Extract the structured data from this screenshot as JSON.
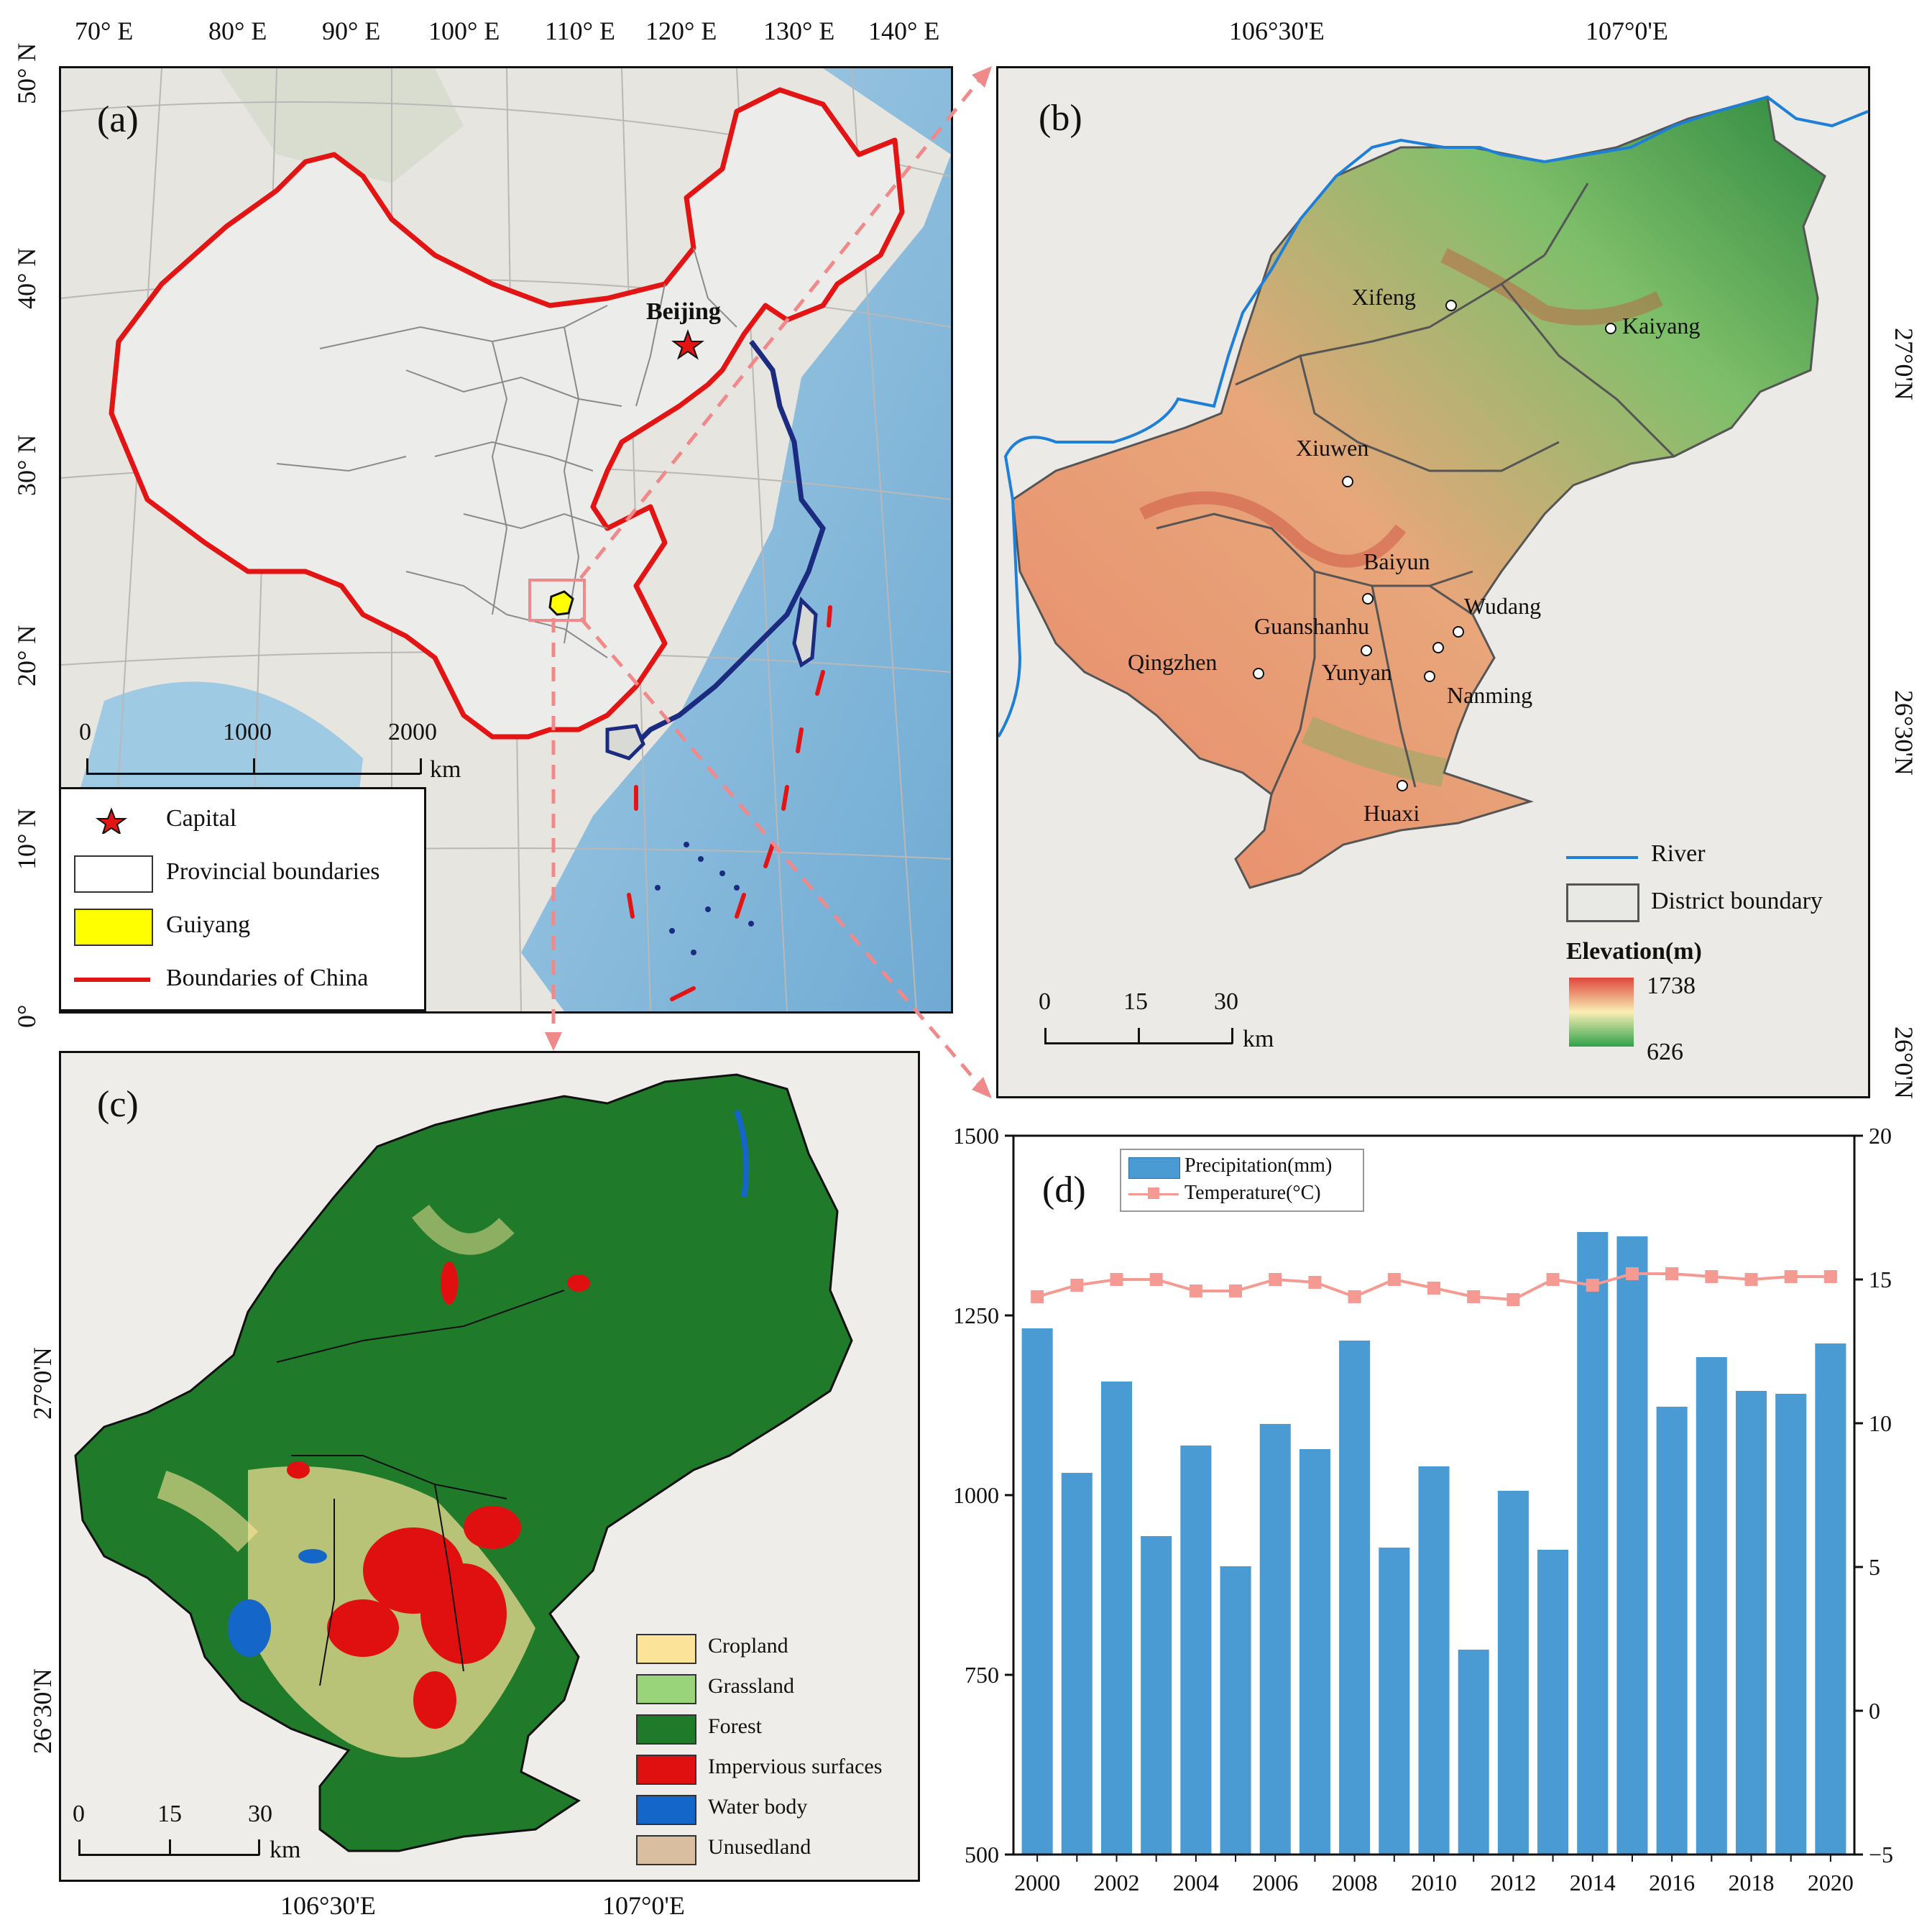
{
  "panel_a": {
    "tag": "(a)",
    "lon_ticks": [
      "70° E",
      "80° E",
      "90° E",
      "100° E",
      "110° E",
      "120° E",
      "130° E",
      "140° E"
    ],
    "lat_ticks": [
      "50° N",
      "40° N",
      "30° N",
      "20° N",
      "10° N",
      "0°"
    ],
    "capital_label": "Beijing",
    "scalebar": {
      "ticks": [
        "0",
        "1000",
        "2000"
      ],
      "unit": "km"
    },
    "legend": [
      {
        "label": "Capital",
        "icon": "red-star-icon"
      },
      {
        "label": "Provincial boundaries",
        "icon": "white-box"
      },
      {
        "label": "Guiyang",
        "icon": "yellow-box"
      },
      {
        "label": "Boundaries of China",
        "icon": "red-line"
      }
    ]
  },
  "panel_b": {
    "tag": "(b)",
    "lon_ticks": [
      "106°30'E",
      "107°0'E"
    ],
    "lat_ticks": [
      "27°0'N",
      "26°30'N",
      "26°0'N"
    ],
    "districts": [
      "Xifeng",
      "Kaiyang",
      "Xiuwen",
      "Baiyun",
      "Wudang",
      "Guanshanhu",
      "Qingzhen",
      "Yunyan",
      "Nanming",
      "Huaxi"
    ],
    "legend": {
      "river": "River",
      "district": "District boundary",
      "elev_title": "Elevation(m)",
      "elev_max": "1738",
      "elev_min": "626"
    },
    "scalebar": {
      "ticks": [
        "0",
        "15",
        "30"
      ],
      "unit": "km"
    }
  },
  "panel_c": {
    "tag": "(c)",
    "lon_ticks": [
      "106°30'E",
      "107°0'E"
    ],
    "lat_ticks": [
      "27°0'N",
      "26°30'N"
    ],
    "legend": [
      {
        "label": "Cropland",
        "color": "#fbe39a"
      },
      {
        "label": "Grassland",
        "color": "#9ad47a"
      },
      {
        "label": "Forest",
        "color": "#1f7a2a"
      },
      {
        "label": "Impervious surfaces",
        "color": "#e01010"
      },
      {
        "label": "Water body",
        "color": "#1466c8"
      },
      {
        "label": "Unusedland",
        "color": "#d9bfa0"
      }
    ],
    "scalebar": {
      "ticks": [
        "0",
        "15",
        "30"
      ],
      "unit": "km"
    }
  },
  "chart_data": {
    "type": "bar",
    "tag": "(d)",
    "x": [
      2000,
      2001,
      2002,
      2003,
      2004,
      2005,
      2006,
      2007,
      2008,
      2009,
      2010,
      2011,
      2012,
      2013,
      2014,
      2015,
      2016,
      2017,
      2018,
      2019,
      2020
    ],
    "x_tick_labels": [
      "2000",
      "2002",
      "2004",
      "2006",
      "2008",
      "2010",
      "2012",
      "2014",
      "2016",
      "2018",
      "2020"
    ],
    "series": [
      {
        "name": "Precipitation(mm)",
        "type": "bar",
        "axis": "left",
        "color": "#4a9bd4",
        "values": [
          1232,
          1031,
          1158,
          943,
          1069,
          901,
          1099,
          1064,
          1215,
          927,
          1040,
          785,
          1006,
          924,
          1366,
          1360,
          1123,
          1192,
          1145,
          1141,
          1211
        ]
      },
      {
        "name": "Temperature(°C)",
        "type": "line",
        "axis": "right",
        "color": "#f59a92",
        "values": [
          14.4,
          14.8,
          15.0,
          15.0,
          14.6,
          14.6,
          15.0,
          14.9,
          14.4,
          15.0,
          14.7,
          14.4,
          14.3,
          15.0,
          14.8,
          15.2,
          15.2,
          15.1,
          15.0,
          15.1,
          15.1
        ]
      }
    ],
    "y_left": {
      "lim": [
        500,
        1500
      ],
      "ticks": [
        "500",
        "750",
        "1000",
        "1250",
        "1500"
      ]
    },
    "y_right": {
      "lim": [
        -5,
        20
      ],
      "ticks": [
        "−5",
        "0",
        "5",
        "10",
        "15",
        "20"
      ]
    },
    "legend_position": "top-left"
  }
}
